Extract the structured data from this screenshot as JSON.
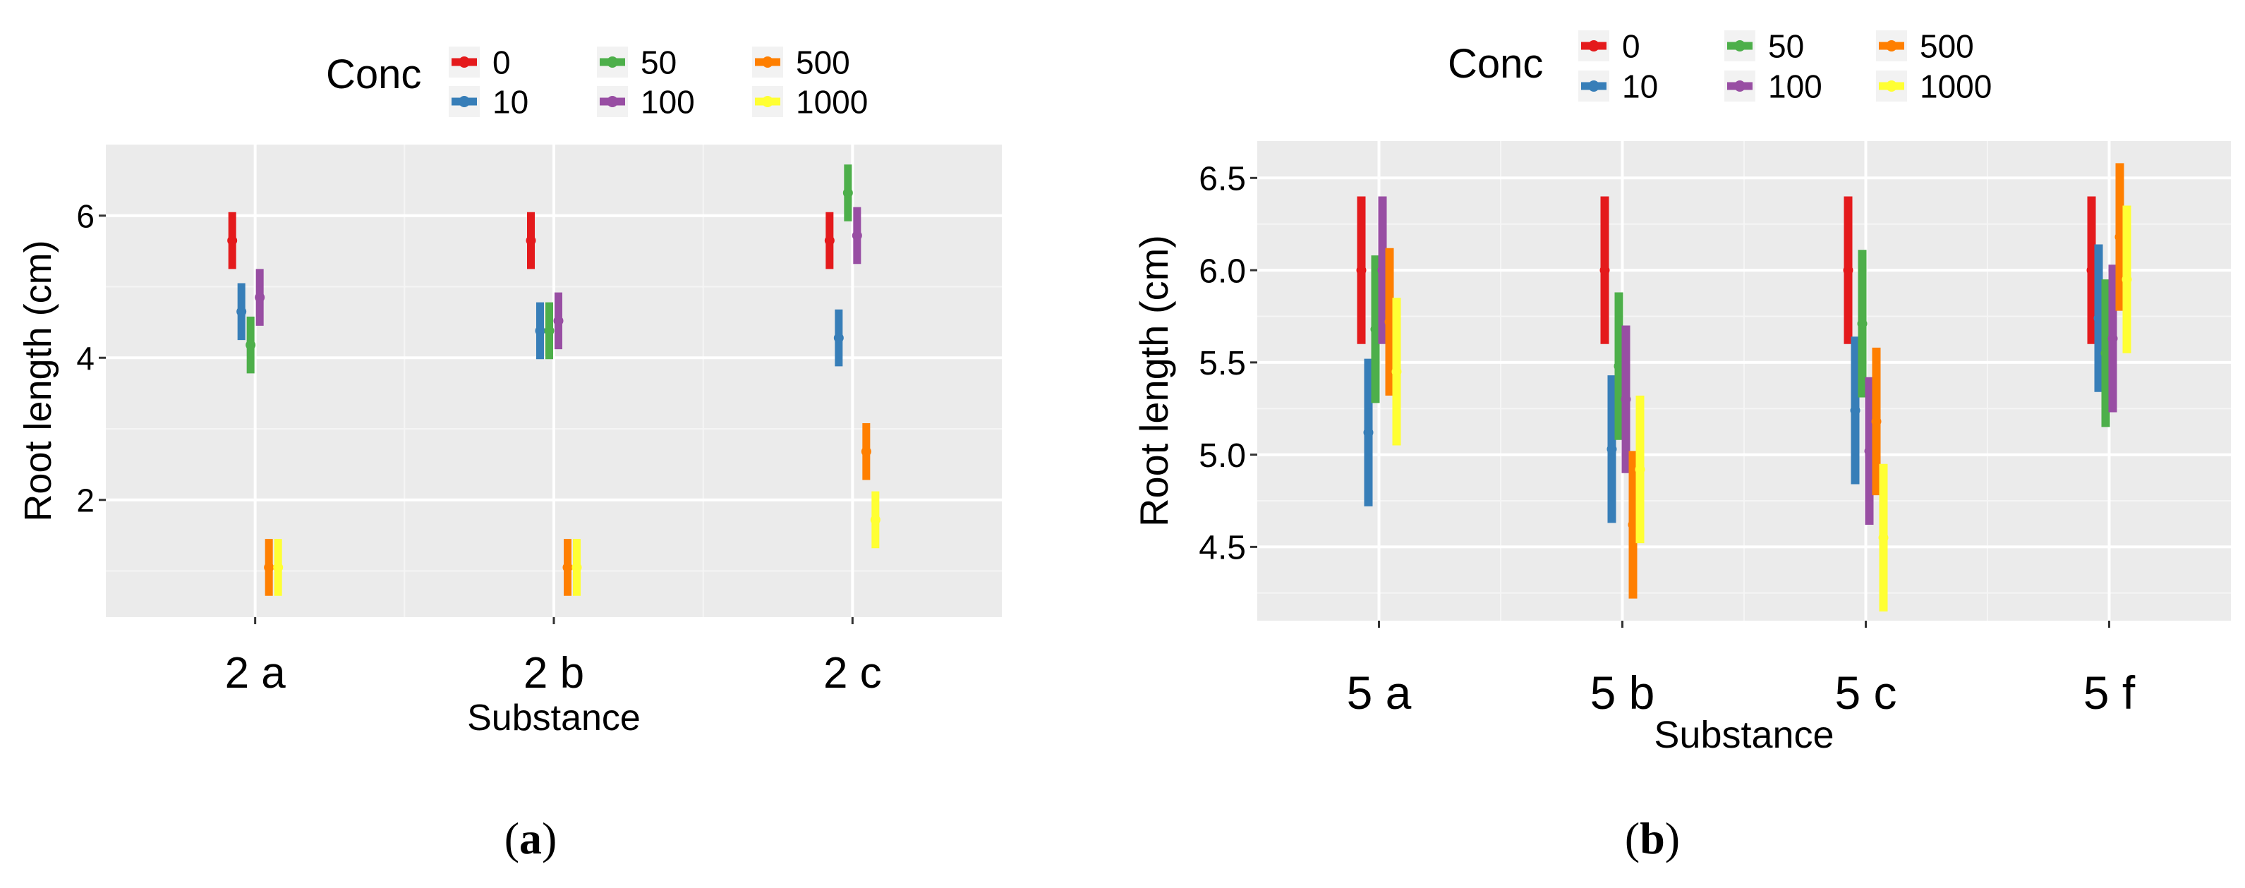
{
  "legend": {
    "title": "Conc",
    "entries": [
      {
        "label": "0",
        "color": "#E41A1C"
      },
      {
        "label": "10",
        "color": "#377EB8"
      },
      {
        "label": "50",
        "color": "#4DAF4A"
      },
      {
        "label": "100",
        "color": "#984EA3"
      },
      {
        "label": "500",
        "color": "#FF7F00"
      },
      {
        "label": "1000",
        "color": "#FFFF33"
      }
    ]
  },
  "panels": [
    {
      "caption_letter": "a"
    },
    {
      "caption_letter": "b"
    }
  ],
  "chart_data": [
    {
      "type": "errorbar",
      "xlabel": "Substance",
      "ylabel": "Root length (cm)",
      "categories": [
        "2 a",
        "2 b",
        "2 c"
      ],
      "ylim": [
        0.35,
        7.0
      ],
      "yticks": [
        2,
        4,
        6
      ],
      "series": [
        {
          "name": "0",
          "mean": [
            5.65,
            5.65,
            5.65
          ],
          "lower": [
            5.25,
            5.25,
            5.25
          ],
          "upper": [
            6.05,
            6.05,
            6.05
          ]
        },
        {
          "name": "10",
          "mean": [
            4.65,
            4.38,
            4.28
          ],
          "lower": [
            4.25,
            3.98,
            3.88
          ],
          "upper": [
            5.05,
            4.78,
            4.68
          ]
        },
        {
          "name": "50",
          "mean": [
            4.18,
            4.38,
            6.32
          ],
          "lower": [
            3.78,
            3.98,
            5.92
          ],
          "upper": [
            4.58,
            4.78,
            6.72
          ]
        },
        {
          "name": "100",
          "mean": [
            4.85,
            4.52,
            5.72
          ],
          "lower": [
            4.45,
            4.12,
            5.32
          ],
          "upper": [
            5.25,
            4.92,
            6.12
          ]
        },
        {
          "name": "500",
          "mean": [
            1.05,
            1.05,
            2.68
          ],
          "lower": [
            0.65,
            0.65,
            2.28
          ],
          "upper": [
            1.45,
            1.45,
            3.08
          ]
        },
        {
          "name": "1000",
          "mean": [
            1.05,
            1.05,
            1.72
          ],
          "lower": [
            0.65,
            0.65,
            1.32
          ],
          "upper": [
            1.45,
            1.45,
            2.12
          ]
        }
      ]
    },
    {
      "type": "errorbar",
      "xlabel": "Substance",
      "ylabel": "Root length (cm)",
      "categories": [
        "5 a",
        "5 b",
        "5 c",
        "5 f"
      ],
      "ylim": [
        4.1,
        6.7
      ],
      "yticks": [
        4.5,
        5.0,
        5.5,
        6.0,
        6.5
      ],
      "series": [
        {
          "name": "0",
          "mean": [
            6.0,
            6.0,
            6.0,
            6.0
          ],
          "lower": [
            5.6,
            5.6,
            5.6,
            5.6
          ],
          "upper": [
            6.4,
            6.4,
            6.4,
            6.4
          ]
        },
        {
          "name": "10",
          "mean": [
            5.12,
            5.03,
            5.24,
            5.74
          ],
          "lower": [
            4.72,
            4.63,
            4.84,
            5.34
          ],
          "upper": [
            5.52,
            5.43,
            5.64,
            6.14
          ]
        },
        {
          "name": "50",
          "mean": [
            5.68,
            5.48,
            5.71,
            5.55
          ],
          "lower": [
            5.28,
            5.08,
            5.31,
            5.15
          ],
          "upper": [
            6.08,
            5.88,
            6.11,
            5.95
          ]
        },
        {
          "name": "100",
          "mean": [
            6.0,
            5.3,
            5.02,
            5.63
          ],
          "lower": [
            5.6,
            4.9,
            4.62,
            5.23
          ],
          "upper": [
            6.4,
            5.7,
            5.42,
            6.03
          ]
        },
        {
          "name": "500",
          "mean": [
            5.72,
            4.62,
            5.18,
            6.18
          ],
          "lower": [
            5.32,
            4.22,
            4.78,
            5.78
          ],
          "upper": [
            6.12,
            5.02,
            5.58,
            6.58
          ]
        },
        {
          "name": "1000",
          "mean": [
            5.45,
            4.92,
            4.55,
            5.95
          ],
          "lower": [
            5.05,
            4.52,
            4.15,
            5.55
          ],
          "upper": [
            5.85,
            5.32,
            4.95,
            6.35
          ]
        }
      ]
    }
  ]
}
